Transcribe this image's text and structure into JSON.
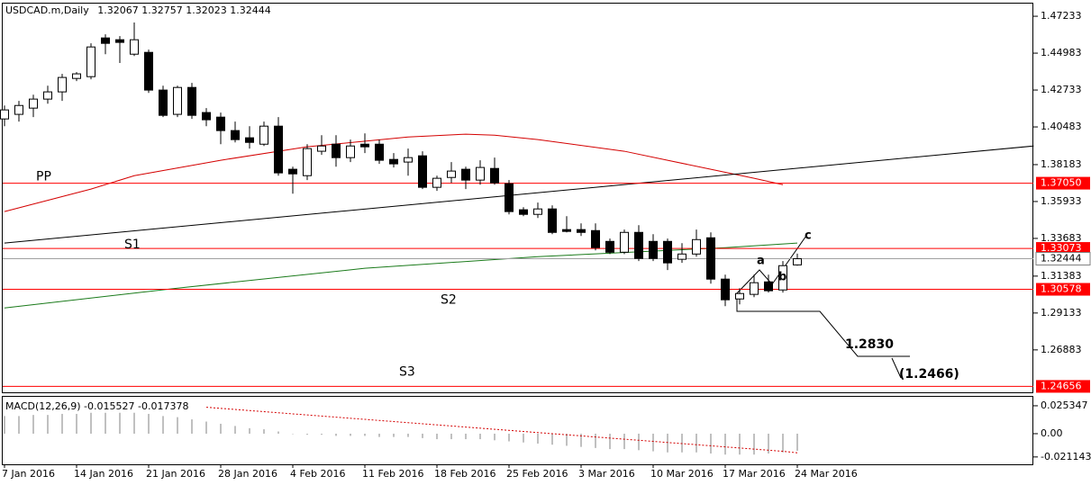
{
  "chart_data": {
    "type": "candlestick",
    "title": "USDCAD.m,Daily",
    "categories": [
      "7 Jan 2016",
      null,
      null,
      null,
      null,
      "14 Jan 2016",
      null,
      null,
      null,
      null,
      "21 Jan 2016",
      null,
      null,
      null,
      null,
      "28 Jan 2016",
      null,
      null,
      null,
      null,
      "4 Feb 2016",
      null,
      null,
      null,
      null,
      "11 Feb 2016",
      null,
      null,
      null,
      null,
      "18 Feb 2016",
      null,
      null,
      null,
      null,
      "25 Feb 2016",
      null,
      null,
      null,
      null,
      "3 Mar 2016",
      null,
      null,
      null,
      null,
      "10 Mar 2016",
      null,
      null,
      null,
      null,
      "17 Mar 2016",
      null,
      null,
      null,
      null,
      "24 Mar 2016"
    ],
    "open": [
      1.4097,
      1.4125,
      1.4163,
      1.4218,
      1.4262,
      1.4344,
      1.4355,
      1.4591,
      1.458,
      1.4492,
      1.4503,
      1.4273,
      1.4125,
      1.4289,
      1.4136,
      1.4108,
      1.4026,
      1.3982,
      1.3943,
      1.4053,
      1.379,
      1.3751,
      1.39,
      1.3943,
      1.3861,
      1.3943,
      1.3943,
      1.385,
      1.3834,
      1.3872,
      1.368,
      1.374,
      1.379,
      1.3724,
      1.3795,
      1.3702,
      1.3543,
      1.3515,
      1.3548,
      1.3422,
      1.3422,
      1.3416,
      1.335,
      1.3284,
      1.3405,
      1.335,
      1.335,
      1.3241,
      1.3273,
      1.3372,
      1.312,
      1.2999,
      1.3027,
      1.3103,
      1.3054,
      1.32067
    ],
    "high": [
      1.4179,
      1.4207,
      1.4245,
      1.43,
      1.4372,
      1.4383,
      1.4558,
      1.4613,
      1.4602,
      1.4685,
      1.452,
      1.43,
      1.43,
      1.4317,
      1.4163,
      1.4136,
      1.4081,
      1.4053,
      1.4081,
      1.4108,
      1.3806,
      1.3943,
      1.3998,
      1.3998,
      1.3971,
      1.4009,
      1.3971,
      1.3889,
      1.3916,
      1.39,
      1.3751,
      1.3834,
      1.3806,
      1.3845,
      1.3861,
      1.3724,
      1.3559,
      1.3587,
      1.357,
      1.3504,
      1.346,
      1.346,
      1.3367,
      1.3422,
      1.3449,
      1.3394,
      1.3367,
      1.3339,
      1.3422,
      1.3405,
      1.3147,
      1.3065,
      1.3147,
      1.3147,
      1.323,
      1.32757
    ],
    "low": [
      1.4053,
      1.4081,
      1.4108,
      1.419,
      1.4207,
      1.4328,
      1.4339,
      1.4492,
      1.4438,
      1.4481,
      1.4256,
      1.4108,
      1.4108,
      1.4097,
      1.4053,
      1.3943,
      1.3954,
      1.3916,
      1.3932,
      1.3751,
      1.3641,
      1.3724,
      1.3878,
      1.3806,
      1.3834,
      1.3889,
      1.3823,
      1.3801,
      1.3751,
      1.3669,
      1.3658,
      1.3707,
      1.3669,
      1.3696,
      1.3696,
      1.3515,
      1.3504,
      1.3493,
      1.3394,
      1.3405,
      1.3383,
      1.3295,
      1.3273,
      1.3273,
      1.323,
      1.323,
      1.3175,
      1.3219,
      1.3257,
      1.3092,
      1.2955,
      1.2966,
      1.301,
      1.3038,
      1.3038,
      1.32023
    ],
    "close": [
      1.4152,
      1.4179,
      1.4218,
      1.4262,
      1.435,
      1.4372,
      1.4536,
      1.4558,
      1.4564,
      1.458,
      1.4273,
      1.4119,
      1.4289,
      1.4119,
      1.4092,
      1.4026,
      1.3971,
      1.3954,
      1.4053,
      1.3768,
      1.3762,
      1.3916,
      1.3932,
      1.3861,
      1.3932,
      1.3927,
      1.3845,
      1.3823,
      1.3861,
      1.368,
      1.3735,
      1.3779,
      1.3724,
      1.3801,
      1.3707,
      1.3532,
      1.3515,
      1.3548,
      1.3405,
      1.3411,
      1.3405,
      1.3312,
      1.3284,
      1.3405,
      1.3246,
      1.3246,
      1.3219,
      1.3273,
      1.3361,
      1.312,
      1.2994,
      1.3032,
      1.3098,
      1.3049,
      1.3202,
      1.32444
    ],
    "ylim": [
      1.2435,
      1.4795
    ],
    "yticks": [
      1.47233,
      1.44983,
      1.42733,
      1.40483,
      1.38183,
      1.35933,
      1.33683,
      1.31383,
      1.29133,
      1.26883
    ],
    "levels": [
      {
        "name": "PP",
        "value": 1.3705,
        "label": "1.37050",
        "color": "#ff0000"
      },
      {
        "name": "S1",
        "value": 1.33073,
        "label": "1.33073",
        "color": "#ff0000"
      },
      {
        "name": "S2",
        "value": 1.30578,
        "label": "1.30578",
        "color": "#ff0000"
      },
      {
        "name": "S3",
        "value": 1.24656,
        "label": "1.24656",
        "color": "#ff0000"
      }
    ],
    "curves": [
      {
        "color": "#d40000",
        "x": [
          0,
          6,
          9,
          15,
          21,
          28,
          32,
          34,
          37,
          43,
          46,
          49,
          52,
          54
        ],
        "values": [
          1.3532,
          1.3669,
          1.3751,
          1.3845,
          1.3927,
          1.3987,
          1.4004,
          1.3998,
          1.3971,
          1.39,
          1.3845,
          1.379,
          1.3735,
          1.3696
        ]
      },
      {
        "color": "#1a7a1a",
        "x": [
          0,
          12,
          25,
          37,
          50,
          55
        ],
        "values": [
          1.2944,
          1.3065,
          1.3186,
          1.3257,
          1.3312,
          1.334
        ]
      },
      {
        "color": "#000000",
        "x": [
          0,
          71.4
        ],
        "values": [
          1.334,
          1.3932
        ]
      }
    ],
    "annotations": [
      "a",
      "b",
      "c",
      "1.2830",
      "(1.2466)"
    ],
    "macd": {
      "label": "MACD(12,26,9)",
      "color": "#c0c0c0",
      "signal_color": "#d40000",
      "values": [
        0.016,
        0.016,
        0.017,
        0.017,
        0.018,
        0.018,
        0.019,
        0.019,
        0.019,
        0.019,
        0.018,
        0.016,
        0.015,
        0.013,
        0.011,
        0.009,
        0.007,
        0.005,
        0.004,
        0.002,
        0.0,
        -0.001,
        -0.001,
        -0.002,
        -0.002,
        -0.002,
        -0.003,
        -0.003,
        -0.003,
        -0.004,
        -0.005,
        -0.005,
        -0.005,
        -0.005,
        -0.006,
        -0.007,
        -0.008,
        -0.009,
        -0.01,
        -0.011,
        -0.012,
        -0.013,
        -0.014,
        -0.014,
        -0.015,
        -0.016,
        -0.017,
        -0.017,
        -0.017,
        -0.018,
        -0.019,
        -0.019,
        -0.019,
        -0.018,
        -0.017,
        -0.015527
      ],
      "signal": [
        null,
        null,
        null,
        null,
        null,
        null,
        null,
        null,
        null,
        null,
        null,
        null,
        null,
        null,
        0.024,
        0.023,
        0.022,
        0.021,
        0.02,
        0.019,
        0.018,
        0.017,
        0.016,
        0.015,
        0.014,
        0.013,
        0.012,
        0.011,
        0.01,
        0.009,
        0.008,
        0.007,
        0.006,
        0.005,
        0.004,
        0.003,
        0.002,
        0.001,
        0.0,
        -0.001,
        -0.002,
        -0.003,
        -0.004,
        -0.005,
        -0.006,
        -0.007,
        -0.008,
        -0.009,
        -0.01,
        -0.011,
        -0.012,
        -0.013,
        -0.014,
        -0.015,
        -0.016,
        -0.017378
      ],
      "ylim": [
        -0.027,
        0.0343
      ],
      "yticks": [
        0.025347,
        {
          "value": 0,
          "label": "0.00"
        },
        -0.021143
      ]
    }
  }
}
